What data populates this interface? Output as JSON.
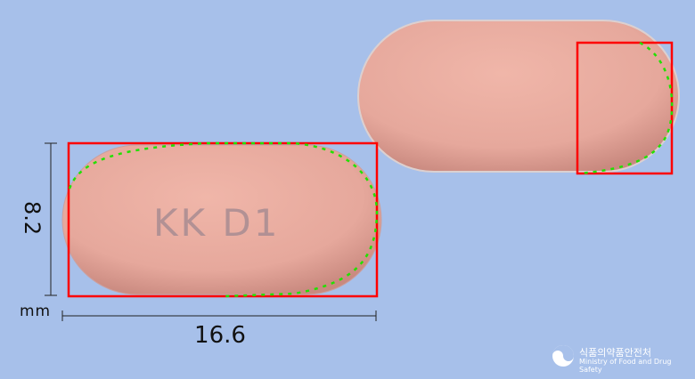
{
  "measurements": {
    "width_value": "16.6",
    "height_value": "8.2",
    "unit": "mm"
  },
  "pill": {
    "imprint": "KK D1"
  },
  "org": {
    "name_ko": "식품의약품안전처",
    "name_en": "Ministry of Food and Drug Safety"
  },
  "colors": {
    "background": "#a7c0ea",
    "pill": "#e6a89c",
    "outline": "#ff0000",
    "contour": "#22e000"
  }
}
